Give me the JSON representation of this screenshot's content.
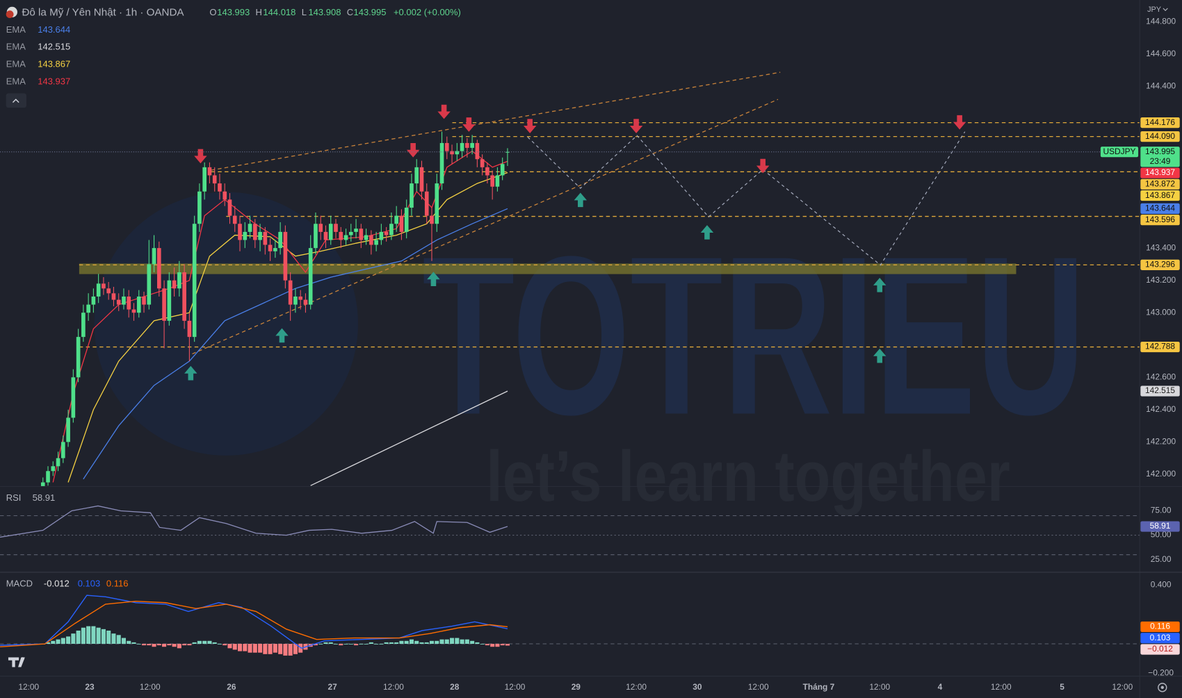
{
  "header": {
    "title": "Đô la Mỹ / Yên Nhật · 1h · OANDA",
    "ohlc_keys": [
      "O",
      "H",
      "L",
      "C"
    ],
    "change": "+0.002 (+0.00%)",
    "currency": "JPY"
  },
  "watermark": {
    "title": "TOTRIEU",
    "tagline": "let’s learn together"
  },
  "time_axis": [
    "12:00",
    "23",
    "12:00",
    "26",
    "27",
    "12:00",
    "28",
    "12:00",
    "29",
    "12:00",
    "30",
    "12:00",
    "Tháng 7",
    "12:00",
    "4",
    "12:00",
    "5",
    "12:00"
  ],
  "chart_data": [
    {
      "type": "candlestick",
      "xlim": [
        -8.5,
        217.2
      ],
      "ylim": [
        141.925,
        144.935
      ],
      "yticks": [
        {
          "value": 144.8,
          "label": "144.800"
        },
        {
          "value": 144.6,
          "label": "144.600"
        },
        {
          "value": 144.4,
          "label": "144.400"
        },
        {
          "value": 143.4,
          "label": "143.400"
        },
        {
          "value": 143.2,
          "label": "143.200"
        },
        {
          "value": 143,
          "label": "143.000"
        },
        {
          "value": 142.6,
          "label": "142.600"
        },
        {
          "value": 142.4,
          "label": "142.400"
        },
        {
          "value": 142.2,
          "label": "142.200"
        },
        {
          "value": 142,
          "label": "142.000"
        }
      ],
      "up_color": "#4fe08a",
      "down_color": "#f0515f",
      "candles": [
        [
          141.92,
          141.98,
          141.9,
          141.95
        ],
        [
          141.95,
          142.05,
          141.93,
          142.02
        ],
        [
          142.02,
          142.08,
          141.99,
          142.05
        ],
        [
          142.05,
          142.14,
          142.02,
          142.1
        ],
        [
          142.1,
          142.24,
          142.07,
          142.2
        ],
        [
          142.2,
          142.4,
          142.17,
          142.35
        ],
        [
          142.35,
          142.65,
          142.32,
          142.6
        ],
        [
          142.6,
          142.9,
          142.57,
          142.85
        ],
        [
          142.85,
          143.05,
          142.82,
          143
        ],
        [
          143,
          143.12,
          142.95,
          143.05
        ],
        [
          143.05,
          143.15,
          143,
          143.1
        ],
        [
          143.1,
          143.24,
          143.06,
          143.18
        ],
        [
          143.18,
          143.22,
          143.11,
          143.15
        ],
        [
          143.15,
          143.19,
          143.08,
          143.12
        ],
        [
          143.12,
          143.16,
          143.04,
          143.08
        ],
        [
          143.08,
          143.12,
          143.01,
          143.05
        ],
        [
          143.05,
          143.15,
          143.02,
          143.1
        ],
        [
          143.1,
          143.14,
          142.97,
          143.02
        ],
        [
          143.02,
          143.06,
          142.95,
          143
        ],
        [
          143,
          143.14,
          142.97,
          143.1
        ],
        [
          143.1,
          143.13,
          143,
          143.05
        ],
        [
          143.05,
          143.45,
          143.02,
          143.3
        ],
        [
          143.3,
          143.48,
          143.25,
          143.4
        ],
        [
          143.4,
          143.44,
          143.1,
          143.15
        ],
        [
          143.15,
          143.2,
          142.78,
          142.95
        ],
        [
          142.95,
          143.25,
          142.92,
          143.2
        ],
        [
          143.2,
          143.28,
          143.1,
          143.15
        ],
        [
          143.15,
          143.32,
          143.1,
          143.25
        ],
        [
          143.25,
          143.3,
          142.9,
          142.95
        ],
        [
          142.95,
          143,
          142.7,
          142.85
        ],
        [
          142.85,
          143.6,
          142.82,
          143.55
        ],
        [
          143.55,
          143.8,
          143.5,
          143.75
        ],
        [
          143.75,
          143.93,
          143.7,
          143.9
        ],
        [
          143.9,
          143.93,
          143.8,
          143.85
        ],
        [
          143.85,
          143.9,
          143.75,
          143.8
        ],
        [
          143.8,
          143.86,
          143.7,
          143.75
        ],
        [
          143.75,
          143.8,
          143.66,
          143.7
        ],
        [
          143.7,
          143.74,
          143.55,
          143.6
        ],
        [
          143.6,
          143.66,
          143.5,
          143.55
        ],
        [
          143.55,
          143.6,
          143.38,
          143.45
        ],
        [
          143.45,
          143.56,
          143.4,
          143.5
        ],
        [
          143.5,
          143.6,
          143.46,
          143.55
        ],
        [
          143.55,
          143.58,
          143.4,
          143.45
        ],
        [
          143.45,
          143.55,
          143.38,
          143.5
        ],
        [
          143.5,
          143.53,
          143.36,
          143.42
        ],
        [
          143.42,
          143.46,
          143.32,
          143.38
        ],
        [
          143.38,
          143.45,
          143.34,
          143.4
        ],
        [
          143.4,
          143.56,
          143.36,
          143.5
        ],
        [
          143.5,
          143.54,
          143.15,
          143.2
        ],
        [
          143.2,
          143.25,
          142.95,
          143.05
        ],
        [
          143.05,
          143.15,
          143,
          143.1
        ],
        [
          143.1,
          143.14,
          143.02,
          143.08
        ],
        [
          143.08,
          143.12,
          143,
          143.05
        ],
        [
          143.05,
          143.48,
          143.02,
          143.4
        ],
        [
          143.4,
          143.62,
          143.36,
          143.55
        ],
        [
          143.55,
          143.6,
          143.45,
          143.5
        ],
        [
          143.5,
          143.54,
          143.4,
          143.45
        ],
        [
          143.45,
          143.6,
          143.42,
          143.55
        ],
        [
          143.55,
          143.58,
          143.46,
          143.5
        ],
        [
          143.5,
          143.53,
          143.4,
          143.45
        ],
        [
          143.45,
          143.52,
          143.42,
          143.48
        ],
        [
          143.48,
          143.55,
          143.44,
          143.5
        ],
        [
          143.5,
          143.58,
          143.46,
          143.52
        ],
        [
          143.52,
          143.55,
          143.4,
          143.45
        ],
        [
          143.45,
          143.52,
          143.42,
          143.48
        ],
        [
          143.48,
          143.51,
          143.36,
          143.42
        ],
        [
          143.42,
          143.5,
          143.38,
          143.45
        ],
        [
          143.45,
          143.55,
          143.42,
          143.5
        ],
        [
          143.5,
          143.53,
          143.44,
          143.48
        ],
        [
          143.48,
          143.62,
          143.45,
          143.55
        ],
        [
          143.55,
          143.66,
          143.5,
          143.6
        ],
        [
          143.6,
          143.64,
          143.45,
          143.5
        ],
        [
          143.5,
          143.7,
          143.46,
          143.65
        ],
        [
          143.65,
          143.86,
          143.6,
          143.8
        ],
        [
          143.8,
          143.95,
          143.75,
          143.9
        ],
        [
          143.9,
          143.94,
          143.7,
          143.75
        ],
        [
          143.75,
          143.8,
          143.55,
          143.6
        ],
        [
          143.6,
          143.65,
          143.32,
          143.55
        ],
        [
          143.55,
          143.86,
          143.5,
          143.8
        ],
        [
          143.8,
          144.12,
          143.76,
          144.05
        ],
        [
          144.05,
          144.09,
          143.95,
          144
        ],
        [
          144,
          144.04,
          143.92,
          143.98
        ],
        [
          143.98,
          144.05,
          143.94,
          144
        ],
        [
          144,
          144.1,
          143.96,
          144.05
        ],
        [
          144.05,
          144.08,
          143.96,
          144.02
        ],
        [
          144.02,
          144.1,
          143.98,
          144.05
        ],
        [
          144.05,
          144.07,
          143.9,
          143.95
        ],
        [
          143.95,
          143.98,
          143.85,
          143.9
        ],
        [
          143.9,
          143.93,
          143.8,
          143.85
        ],
        [
          143.85,
          143.88,
          143.7,
          143.78
        ],
        [
          143.78,
          143.9,
          143.75,
          143.85
        ],
        [
          143.85,
          143.96,
          143.82,
          143.92
        ],
        [
          143.993,
          144.018,
          143.908,
          143.995
        ]
      ],
      "series": [
        {
          "name": "EMA",
          "color": "#4a7fe8",
          "badge_text": "#111111",
          "x": [
            8,
            15,
            22,
            29,
            36,
            43,
            50,
            57,
            64,
            71,
            78,
            85,
            92
          ],
          "values": [
            141.97,
            142.3,
            142.55,
            142.7,
            142.95,
            143.05,
            143.15,
            143.22,
            143.27,
            143.32,
            143.45,
            143.55,
            143.644
          ]
        },
        {
          "name": "EMA",
          "color": "#d8d8dc",
          "badge_text": "#222222",
          "x": [
            53,
            92
          ],
          "values": [
            141.93,
            142.515
          ]
        },
        {
          "name": "EMA",
          "color": "#f5d142",
          "badge_text": "#111111",
          "x": [
            5,
            10,
            15,
            22,
            29,
            33,
            38,
            45,
            50,
            55,
            62,
            70,
            76,
            80,
            86,
            92
          ],
          "values": [
            141.95,
            142.4,
            142.7,
            142.95,
            143,
            143.35,
            143.48,
            143.47,
            143.35,
            143.38,
            143.43,
            143.48,
            143.55,
            143.7,
            143.8,
            143.867
          ]
        },
        {
          "name": "EMA",
          "color": "#f23645",
          "badge_text": "#ffffff",
          "x": [
            2,
            6,
            10,
            15,
            20,
            25,
            29,
            32,
            36,
            42,
            47,
            52,
            56,
            64,
            70,
            74,
            77,
            80,
            85,
            89,
            92
          ],
          "values": [
            141.95,
            142.5,
            142.9,
            143.05,
            143.1,
            143.15,
            143.2,
            143.6,
            143.7,
            143.55,
            143.45,
            143.25,
            143.45,
            143.47,
            143.52,
            143.75,
            143.65,
            143.9,
            144,
            143.9,
            143.937
          ]
        }
      ],
      "levels": {
        "color": "#e0a93a",
        "values": [
          {
            "value": 144.176,
            "label": "144.176"
          },
          {
            "value": 144.09,
            "label": "144.090"
          },
          {
            "value": 143.872,
            "label": "143.872"
          },
          {
            "value": 143.596,
            "label": "143.596"
          },
          {
            "value": 143.296,
            "label": "143.296"
          },
          {
            "value": 142.788,
            "label": "142.788"
          }
        ]
      },
      "last_price": {
        "label": "USDJPY",
        "countdown": "23:49",
        "color": "#4fe08a"
      }
    },
    {
      "type": "rsi",
      "title": "RSI",
      "xlim": [
        -8.5,
        217.2
      ],
      "ylim": [
        12,
        100
      ],
      "color": "#8a8cb8",
      "yticks": [
        {
          "value": 75,
          "label": "75.00"
        },
        {
          "value": 50,
          "label": "50.00"
        },
        {
          "value": 25,
          "label": "25.00"
        }
      ],
      "band_lines": [
        70,
        50,
        30
      ],
      "x": [
        -8.5,
        0,
        5.7,
        10.9,
        15.4,
        21.3,
        23.1,
        27.3,
        31,
        36.3,
        42.2,
        48.2,
        52.7,
        57.2,
        63.1,
        69.1,
        73.6,
        77.3,
        78,
        84,
        88.5,
        92
      ],
      "values": [
        48,
        55,
        75,
        80,
        75,
        73,
        58,
        55,
        68,
        62,
        52,
        50,
        55,
        56,
        52,
        55,
        64,
        52,
        64,
        63,
        53,
        58.91
      ]
    },
    {
      "type": "macd",
      "title": "MACD",
      "xlim": [
        -8.5,
        217.2
      ],
      "ylim": [
        -0.22,
        0.487
      ],
      "yticks": [
        {
          "value": 0.4,
          "label": "0.400"
        },
        {
          "value": -0.2,
          "label": "−0.200"
        }
      ],
      "histogram": {
        "up_color": "#7fd6c0",
        "down_color": "#f77c80",
        "last_value_label": "−0.012",
        "values": [
          0,
          0.01,
          0.02,
          0.03,
          0.04,
          0.05,
          0.07,
          0.09,
          0.11,
          0.12,
          0.12,
          0.11,
          0.1,
          0.09,
          0.07,
          0.06,
          0.04,
          0.02,
          0.01,
          0,
          -0.01,
          -0.01,
          -0.02,
          -0.01,
          -0.02,
          -0.01,
          -0.02,
          -0.03,
          -0.01,
          -0.01,
          0.01,
          0.02,
          0.02,
          0.02,
          0.01,
          0,
          -0.01,
          -0.03,
          -0.04,
          -0.05,
          -0.05,
          -0.06,
          -0.06,
          -0.06,
          -0.07,
          -0.07,
          -0.06,
          -0.07,
          -0.08,
          -0.08,
          -0.07,
          -0.06,
          -0.04,
          -0.02,
          -0.01,
          0,
          0.01,
          0.01,
          0,
          -0.01,
          0,
          0,
          -0.01,
          0,
          0,
          0.01,
          0,
          0,
          0.01,
          0.01,
          0.01,
          0.02,
          0.02,
          0.03,
          0.02,
          0.01,
          0.01,
          0.02,
          0.02,
          0.03,
          0.03,
          0.04,
          0.04,
          0.03,
          0.03,
          0.02,
          0.01,
          0,
          -0.01,
          -0.02,
          -0.02,
          -0.01,
          -0.012
        ]
      },
      "series": [
        {
          "color": "#2962ff",
          "x": [
            -8.5,
            0.4,
            5,
            8.7,
            12.4,
            18.4,
            24.3,
            28.8,
            34.8,
            39.3,
            45.2,
            51.2,
            55.7,
            63.1,
            70.6,
            75.1,
            81,
            85.5,
            92
          ],
          "values": [
            -0.01,
            0,
            0.15,
            0.33,
            0.32,
            0.28,
            0.27,
            0.22,
            0.28,
            0.25,
            0.12,
            -0.03,
            0.02,
            0.03,
            0.04,
            0.09,
            0.12,
            0.15,
            0.103
          ]
        },
        {
          "color": "#ff6d00",
          "x": [
            -8.5,
            0.4,
            6.4,
            12.4,
            18.4,
            24.3,
            30.3,
            36.3,
            42.2,
            48.2,
            54.2,
            61.6,
            70.6,
            76.6,
            82.5,
            88.5,
            92
          ],
          "values": [
            -0.02,
            0,
            0.14,
            0.27,
            0.29,
            0.28,
            0.24,
            0.27,
            0.22,
            0.1,
            0.03,
            0.04,
            0.04,
            0.07,
            0.11,
            0.13,
            0.116
          ]
        }
      ]
    }
  ]
}
